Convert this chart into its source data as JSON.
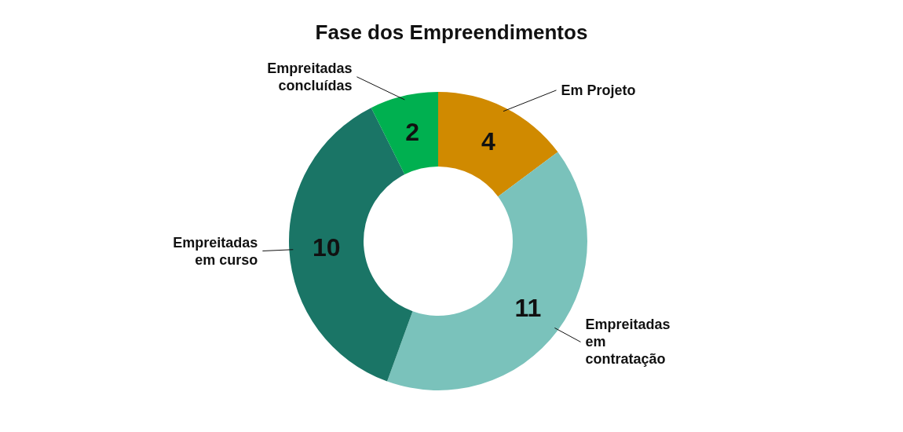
{
  "chart_data": {
    "type": "donut",
    "title": "Fase dos Empreendimentos",
    "categories": [
      "Em Projeto",
      "Empreitadas em contratação",
      "Empreitadas em curso",
      "Empreitadas concluídas"
    ],
    "values": [
      4,
      11,
      10,
      2
    ],
    "colors": [
      "#d08a00",
      "#7ac2bb",
      "#1a7566",
      "#00b050"
    ],
    "data_labels": true
  }
}
